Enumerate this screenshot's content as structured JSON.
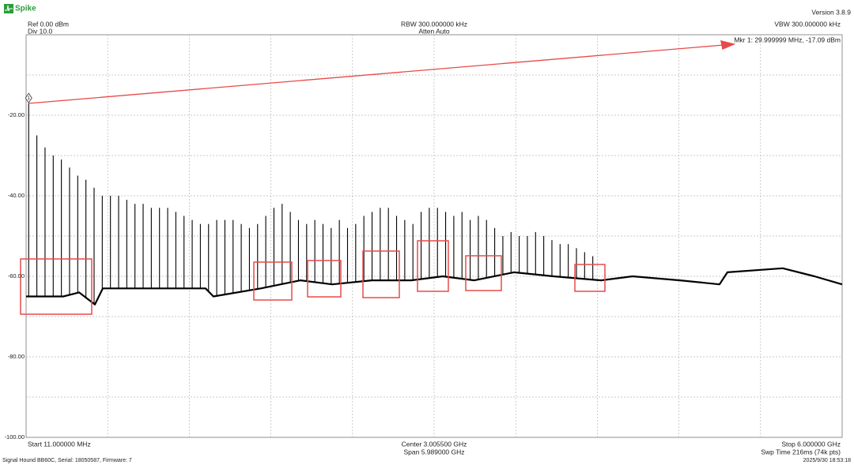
{
  "app": {
    "logo": "Spike",
    "version": "Version 3.8.9",
    "ref": "Ref 0.00 dBm",
    "div": "Div 10.0",
    "rbw": "RBW 300.000000 kHz",
    "atten": "Atten Auto",
    "vbw": "VBW 300.000000 kHz",
    "start": "Start 11.000000 MHz",
    "center": "Center 3.005500 GHz",
    "span": "Span 5.989000 GHz",
    "stop": "Stop 6.000000 GHz",
    "sweep": "Swp Time 216ms (74k pts)",
    "device": "Signal Hound BB60C, Serial: 18050587, Firmware: 7",
    "timestamp": "2025/9/30 18:53:18"
  },
  "chart_data": {
    "type": "line",
    "xlim": [
      11,
      6000
    ],
    "x_divisions": 10,
    "ylim": [
      -100,
      0
    ],
    "yticks": [
      {
        "value": -20,
        "label": "-20.00"
      },
      {
        "value": -40,
        "label": "-40.00"
      },
      {
        "value": -60,
        "label": "-60.00"
      },
      {
        "value": -80,
        "label": "-80.00"
      },
      {
        "value": -100,
        "label": "-100.00"
      }
    ],
    "y_grid": [
      -10,
      -30,
      -50,
      -70,
      -90
    ],
    "grid": true,
    "series": [
      {
        "color": "#000000",
        "x": [
          11,
          284,
          400,
          516,
          574,
          980,
          1328,
          1386,
          1734,
          2025,
          2257,
          2547,
          2837,
          3069,
          3301,
          3591,
          3881,
          4230,
          4462,
          4810,
          5100,
          5158,
          5564,
          5797,
          6000
        ],
        "values": [
          -65,
          -65,
          -64,
          -67,
          -63,
          -63,
          -63,
          -65,
          -63,
          -61,
          -62,
          -61,
          -61,
          -60,
          -61,
          -59,
          -60,
          -61,
          -60,
          -61,
          -62,
          -59,
          -58,
          -60,
          -62
        ]
      }
    ],
    "spikes": {
      "color": "#000000",
      "x": [
        30,
        90,
        150,
        210,
        270,
        330,
        390,
        450,
        510,
        570,
        630,
        690,
        750,
        810,
        870,
        930,
        990,
        1050,
        1110,
        1170,
        1230,
        1290,
        1350,
        1410,
        1470,
        1530,
        1590,
        1650,
        1710,
        1770,
        1830,
        1890,
        1950,
        2010,
        2070,
        2130,
        2190,
        2250,
        2310,
        2370,
        2430,
        2490,
        2550,
        2610,
        2670,
        2730,
        2790,
        2850,
        2910,
        2970,
        3030,
        3090,
        3150,
        3210,
        3270,
        3330,
        3390,
        3450,
        3510,
        3570,
        3630,
        3690,
        3750,
        3810,
        3870,
        3930,
        3990,
        4050,
        4110,
        4170
      ],
      "values": [
        -17,
        -25,
        -28,
        -30,
        -31,
        -33,
        -35,
        -36,
        -38,
        -40,
        -40,
        -40,
        -41,
        -42,
        -42,
        -43,
        -43,
        -43,
        -44,
        -45,
        -46,
        -47,
        -47,
        -46,
        -46,
        -46,
        -47,
        -48,
        -47,
        -45,
        -43,
        -42,
        -44,
        -46,
        -47,
        -46,
        -47,
        -48,
        -46,
        -48,
        -47,
        -45,
        -44,
        -43,
        -43,
        -45,
        -46,
        -47,
        -44,
        -43,
        -43,
        -44,
        -45,
        -44,
        -46,
        -45,
        -46,
        -48,
        -50,
        -49,
        -50,
        -50,
        -49,
        -50,
        -51,
        -52,
        -52,
        -53,
        -54,
        -55
      ]
    },
    "marker": {
      "label": "1",
      "x": 29.999999,
      "value": -17.09,
      "text": "Mkr 1: 29.999999 MHz, -17.09 dBm"
    }
  }
}
